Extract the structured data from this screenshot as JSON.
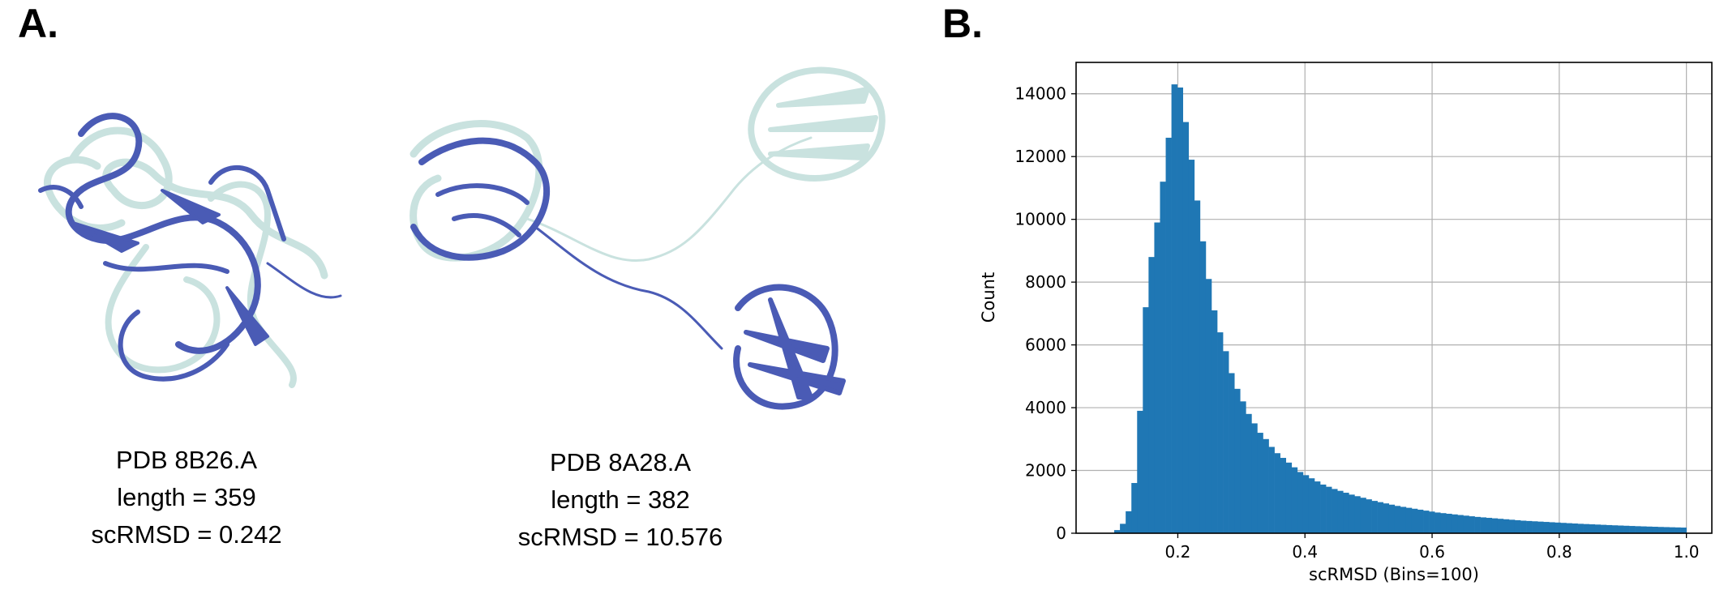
{
  "panels": {
    "a": {
      "label": "A."
    },
    "b": {
      "label": "B."
    }
  },
  "structures": [
    {
      "pdb": "PDB 8B26.A",
      "length": "length = 359",
      "rmsd": "scRMSD = 0.242"
    },
    {
      "pdb": "PDB 8A28.A",
      "length": "length = 382",
      "rmsd": "scRMSD = 10.576"
    }
  ],
  "colors": {
    "predicted": "#4a5bb5",
    "reference": "#c9e2df",
    "bar": "#1f77b4",
    "grid": "#b0b0b0"
  },
  "chart_data": {
    "type": "histogram",
    "xlabel": "scRMSD (Bins=100)",
    "ylabel": "Count",
    "xlim": [
      0.04,
      1.04
    ],
    "ylim": [
      0,
      15000
    ],
    "xticks": [
      0.2,
      0.4,
      0.6,
      0.8,
      1.0
    ],
    "xtick_labels": [
      "0.2",
      "0.4",
      "0.6",
      "0.8",
      "1.0"
    ],
    "yticks": [
      0,
      2000,
      4000,
      6000,
      8000,
      10000,
      12000,
      14000
    ],
    "ytick_labels": [
      "0",
      "2000",
      "4000",
      "6000",
      "8000",
      "10000",
      "12000",
      "14000"
    ],
    "grid": true,
    "bin_start": 0.1,
    "bin_width": 0.009,
    "counts": [
      100,
      300,
      700,
      1600,
      3900,
      7200,
      8800,
      9900,
      11200,
      12600,
      14300,
      14200,
      13100,
      11900,
      10600,
      9300,
      8100,
      7100,
      6400,
      5800,
      5100,
      4600,
      4200,
      3800,
      3500,
      3200,
      3000,
      2750,
      2550,
      2400,
      2250,
      2100,
      1950,
      1850,
      1750,
      1650,
      1550,
      1480,
      1410,
      1350,
      1290,
      1230,
      1180,
      1130,
      1080,
      1030,
      990,
      950,
      910,
      870,
      840,
      810,
      780,
      750,
      720,
      690,
      660,
      640,
      620,
      600,
      580,
      560,
      540,
      520,
      505,
      490,
      475,
      460,
      445,
      430,
      415,
      400,
      390,
      380,
      370,
      360,
      350,
      340,
      330,
      320,
      310,
      300,
      292,
      284,
      276,
      268,
      260,
      252,
      245,
      238,
      231,
      224,
      218,
      212,
      206,
      200,
      195,
      190,
      185,
      180
    ]
  }
}
